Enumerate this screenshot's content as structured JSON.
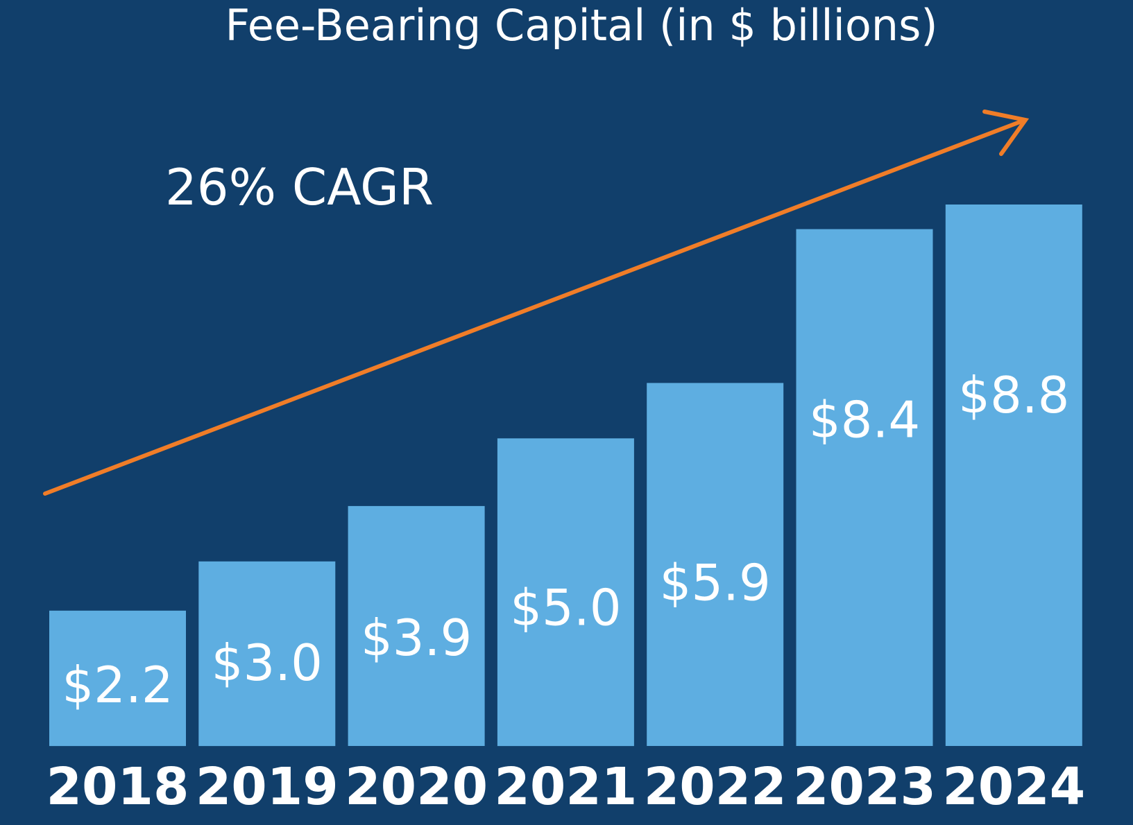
{
  "chart_data": {
    "type": "bar",
    "title": "Fee-Bearing Capital (in $ billions)",
    "categories": [
      "2018",
      "2019",
      "2020",
      "2021",
      "2022",
      "2023",
      "2024"
    ],
    "values": [
      2.2,
      3.0,
      3.9,
      5.0,
      5.9,
      8.4,
      8.8
    ],
    "value_labels": [
      "$2.2",
      "$3.0",
      "$3.9",
      "$5.0",
      "$5.9",
      "$8.4",
      "$8.8"
    ],
    "annotation": "26% CAGR",
    "ylim": [
      0,
      10
    ],
    "grid": false,
    "legend": "none",
    "colors": {
      "background": "#113f6b",
      "bar": "#5eaee1",
      "trend_arrow": "#f07d28",
      "text": "#ffffff"
    }
  }
}
